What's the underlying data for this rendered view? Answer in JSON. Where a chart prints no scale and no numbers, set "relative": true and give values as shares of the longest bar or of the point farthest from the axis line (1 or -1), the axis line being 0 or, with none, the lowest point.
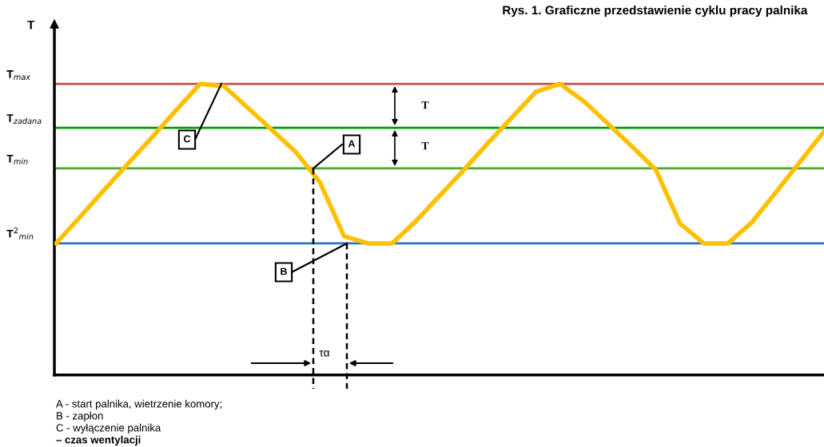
{
  "chart_data": {
    "type": "line",
    "relative": true,
    "title": "Rys. 1. Graficzne przedstawienie cyklu pracy palnika",
    "ylabel": "T",
    "categories": [
      null,
      null,
      null,
      null,
      null,
      null,
      null,
      null,
      null,
      null,
      null,
      null,
      null,
      null,
      null,
      null,
      null,
      null,
      null,
      null,
      null,
      null,
      null,
      null,
      null,
      null,
      null,
      null,
      null,
      null,
      null,
      null,
      null
    ],
    "series": [
      {
        "color": "#ffc000",
        "values": [
          0.452,
          0.543,
          0.635,
          0.726,
          0.817,
          0.909,
          1.0,
          0.992,
          0.917,
          0.841,
          0.765,
          0.661,
          0.477,
          0.452,
          0.452,
          0.529,
          0.617,
          0.705,
          0.797,
          0.885,
          0.973,
          1.0,
          0.94,
          0.863,
          0.785,
          0.704,
          0.52,
          0.452,
          0.452,
          0.525,
          0.628,
          0.732,
          0.836
        ]
      }
    ],
    "ref_lines": [
      {
        "axis": "y",
        "value": 1.0,
        "label": "T$_{max}$",
        "color": "#c0504d"
      },
      {
        "axis": "y",
        "value": 0.849,
        "label": "T$_{zadana}$",
        "color": "#00a000"
      },
      {
        "axis": "y",
        "value": 0.71,
        "label": "T$_{min}$",
        "color": "#4ea72e"
      },
      {
        "axis": "y",
        "value": 0.452,
        "label": "T$^{2}$$_{min}$",
        "color": "#2f75c6"
      }
    ],
    "annotations": [
      "A",
      "B",
      "C",
      "T",
      "T",
      "τα",
      "A - start palnika, wietrzenie komory;",
      "B - zapłon",
      "C - wyłączenie palnika",
      "– czas wentylacji"
    ],
    "grid": false,
    "legend": false,
    "marker": "none",
    "line_style": "solid"
  }
}
